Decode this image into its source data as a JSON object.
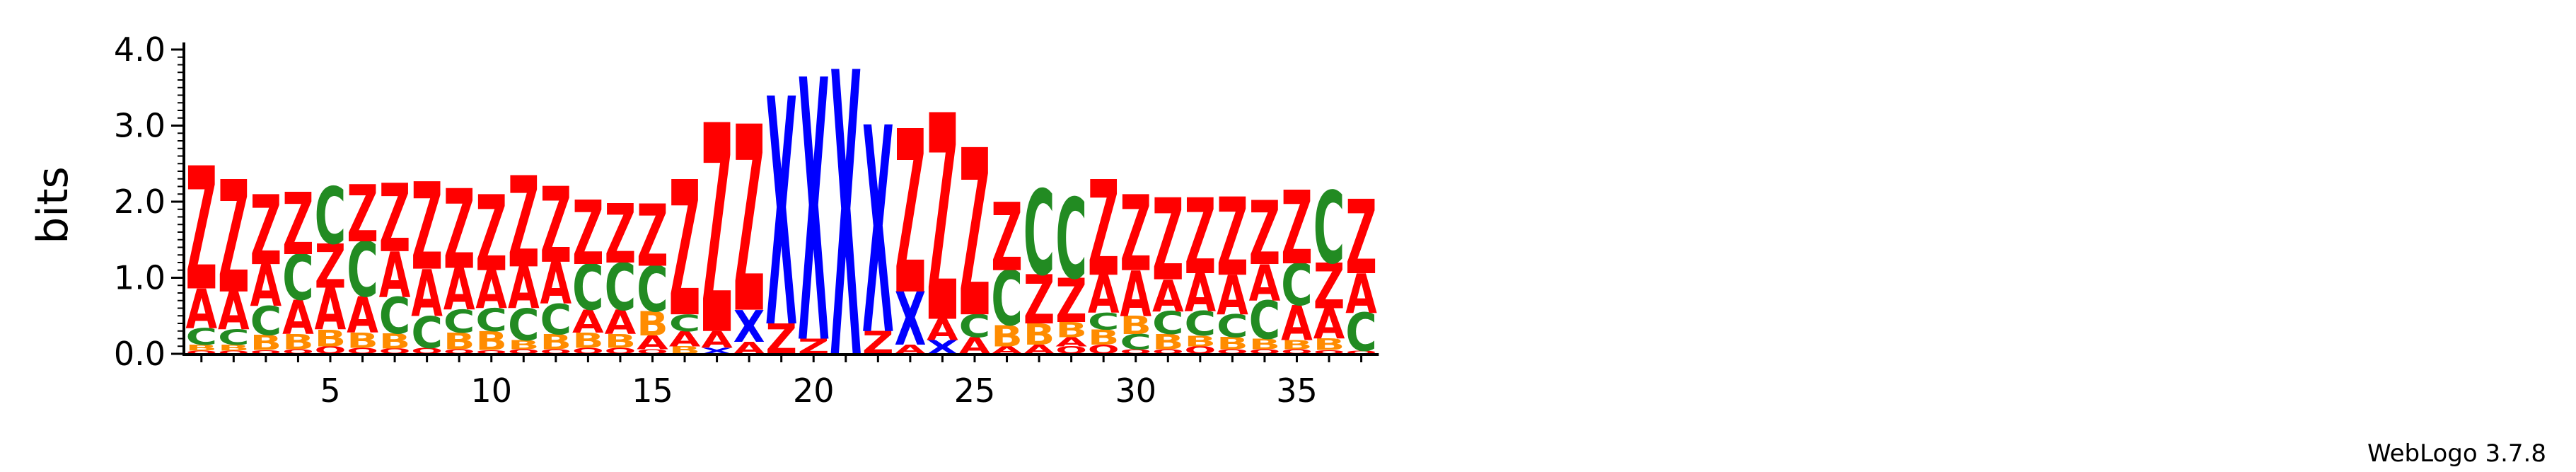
{
  "chart_data": {
    "type": "sequence-logo",
    "ylabel": "bits",
    "ylim": [
      0,
      4.0
    ],
    "yticks": [
      "0.0",
      "1.0",
      "2.0",
      "3.0",
      "4.0"
    ],
    "xticks": [
      {
        "position": 5,
        "label": "5"
      },
      {
        "position": 10,
        "label": "10"
      },
      {
        "position": 15,
        "label": "15"
      },
      {
        "position": 20,
        "label": "20"
      },
      {
        "position": 25,
        "label": "25"
      },
      {
        "position": 30,
        "label": "30"
      },
      {
        "position": 35,
        "label": "35"
      }
    ],
    "credit": "WebLogo 3.7.8",
    "colors": {
      "Z": "#ff0000",
      "A": "#ff0000",
      "C": "#228b22",
      "X": "#0000ff",
      "B": "#ff8c00",
      "Q": "#ff0000"
    },
    "positions": [
      {
        "x": 1,
        "letters": [
          {
            "l": "Q",
            "h": 0.04
          },
          {
            "l": "B",
            "h": 0.08
          },
          {
            "l": "C",
            "h": 0.22
          },
          {
            "l": "A",
            "h": 0.52
          },
          {
            "l": "Z",
            "h": 1.62
          }
        ]
      },
      {
        "x": 2,
        "letters": [
          {
            "l": "Q",
            "h": 0.04
          },
          {
            "l": "B",
            "h": 0.08
          },
          {
            "l": "C",
            "h": 0.2
          },
          {
            "l": "A",
            "h": 0.5
          },
          {
            "l": "Z",
            "h": 1.48
          }
        ]
      },
      {
        "x": 3,
        "letters": [
          {
            "l": "Q",
            "h": 0.05
          },
          {
            "l": "B",
            "h": 0.2
          },
          {
            "l": "C",
            "h": 0.38
          },
          {
            "l": "A",
            "h": 0.55
          },
          {
            "l": "Z",
            "h": 0.92
          }
        ]
      },
      {
        "x": 4,
        "letters": [
          {
            "l": "Q",
            "h": 0.06
          },
          {
            "l": "B",
            "h": 0.2
          },
          {
            "l": "A",
            "h": 0.45
          },
          {
            "l": "C",
            "h": 0.6
          },
          {
            "l": "Z",
            "h": 0.82
          }
        ]
      },
      {
        "x": 5,
        "letters": [
          {
            "l": "Q",
            "h": 0.1
          },
          {
            "l": "B",
            "h": 0.22
          },
          {
            "l": "A",
            "h": 0.55
          },
          {
            "l": "Z",
            "h": 0.58
          },
          {
            "l": "C",
            "h": 0.75
          }
        ]
      },
      {
        "x": 6,
        "letters": [
          {
            "l": "Q",
            "h": 0.08
          },
          {
            "l": "B",
            "h": 0.2
          },
          {
            "l": "A",
            "h": 0.48
          },
          {
            "l": "C",
            "h": 0.72
          },
          {
            "l": "Z",
            "h": 0.75
          }
        ]
      },
      {
        "x": 7,
        "letters": [
          {
            "l": "Q",
            "h": 0.07
          },
          {
            "l": "B",
            "h": 0.2
          },
          {
            "l": "C",
            "h": 0.48
          },
          {
            "l": "A",
            "h": 0.6
          },
          {
            "l": "Z",
            "h": 0.9
          }
        ]
      },
      {
        "x": 8,
        "letters": [
          {
            "l": "Q",
            "h": 0.08
          },
          {
            "l": "C",
            "h": 0.42
          },
          {
            "l": "A",
            "h": 0.62
          },
          {
            "l": "Z",
            "h": 1.15
          }
        ]
      },
      {
        "x": 9,
        "letters": [
          {
            "l": "Q",
            "h": 0.06
          },
          {
            "l": "B",
            "h": 0.22
          },
          {
            "l": "C",
            "h": 0.3
          },
          {
            "l": "A",
            "h": 0.55
          },
          {
            "l": "Z",
            "h": 1.05
          }
        ]
      },
      {
        "x": 10,
        "letters": [
          {
            "l": "Q",
            "h": 0.05
          },
          {
            "l": "B",
            "h": 0.25
          },
          {
            "l": "C",
            "h": 0.3
          },
          {
            "l": "A",
            "h": 0.5
          },
          {
            "l": "Z",
            "h": 1.0
          }
        ]
      },
      {
        "x": 11,
        "letters": [
          {
            "l": "Q",
            "h": 0.06
          },
          {
            "l": "B",
            "h": 0.12
          },
          {
            "l": "C",
            "h": 0.42
          },
          {
            "l": "A",
            "h": 0.55
          },
          {
            "l": "Z",
            "h": 1.2
          }
        ]
      },
      {
        "x": 12,
        "letters": [
          {
            "l": "Q",
            "h": 0.06
          },
          {
            "l": "B",
            "h": 0.2
          },
          {
            "l": "C",
            "h": 0.4
          },
          {
            "l": "A",
            "h": 0.55
          },
          {
            "l": "Z",
            "h": 1.0
          }
        ]
      },
      {
        "x": 13,
        "letters": [
          {
            "l": "Q",
            "h": 0.08
          },
          {
            "l": "B",
            "h": 0.2
          },
          {
            "l": "A",
            "h": 0.3
          },
          {
            "l": "C",
            "h": 0.6
          },
          {
            "l": "Z",
            "h": 0.85
          }
        ]
      },
      {
        "x": 14,
        "letters": [
          {
            "l": "Q",
            "h": 0.08
          },
          {
            "l": "B",
            "h": 0.18
          },
          {
            "l": "A",
            "h": 0.32
          },
          {
            "l": "C",
            "h": 0.62
          },
          {
            "l": "Z",
            "h": 0.78
          }
        ]
      },
      {
        "x": 15,
        "letters": [
          {
            "l": "Q",
            "h": 0.06
          },
          {
            "l": "A",
            "h": 0.18
          },
          {
            "l": "B",
            "h": 0.32
          },
          {
            "l": "C",
            "h": 0.6
          },
          {
            "l": "Z",
            "h": 0.82
          }
        ]
      },
      {
        "x": 16,
        "letters": [
          {
            "l": "B",
            "h": 0.1
          },
          {
            "l": "A",
            "h": 0.2
          },
          {
            "l": "C",
            "h": 0.22
          },
          {
            "l": "Z",
            "h": 1.78
          }
        ]
      },
      {
        "x": 17,
        "letters": [
          {
            "l": "X",
            "h": 0.08
          },
          {
            "l": "A",
            "h": 0.22
          },
          {
            "l": "Z",
            "h": 2.75
          }
        ]
      },
      {
        "x": 18,
        "letters": [
          {
            "l": "A",
            "h": 0.16
          },
          {
            "l": "X",
            "h": 0.42
          },
          {
            "l": "Z",
            "h": 2.45
          }
        ]
      },
      {
        "x": 19,
        "letters": [
          {
            "l": "Z",
            "h": 0.4
          },
          {
            "l": "X",
            "h": 3.0
          }
        ]
      },
      {
        "x": 20,
        "letters": [
          {
            "l": "Z",
            "h": 0.2
          },
          {
            "l": "X",
            "h": 3.45
          }
        ]
      },
      {
        "x": 21,
        "letters": [
          {
            "l": "X",
            "h": 3.75
          }
        ]
      },
      {
        "x": 22,
        "letters": [
          {
            "l": "Z",
            "h": 0.3
          },
          {
            "l": "X",
            "h": 2.72
          }
        ]
      },
      {
        "x": 23,
        "letters": [
          {
            "l": "A",
            "h": 0.12
          },
          {
            "l": "X",
            "h": 0.7
          },
          {
            "l": "Z",
            "h": 2.15
          }
        ]
      },
      {
        "x": 24,
        "letters": [
          {
            "l": "X",
            "h": 0.18
          },
          {
            "l": "A",
            "h": 0.28
          },
          {
            "l": "Z",
            "h": 2.72
          }
        ]
      },
      {
        "x": 25,
        "letters": [
          {
            "l": "A",
            "h": 0.22
          },
          {
            "l": "C",
            "h": 0.3
          },
          {
            "l": "Z",
            "h": 2.2
          }
        ]
      },
      {
        "x": 26,
        "letters": [
          {
            "l": "A",
            "h": 0.1
          },
          {
            "l": "B",
            "h": 0.28
          },
          {
            "l": "C",
            "h": 0.72
          },
          {
            "l": "Z",
            "h": 0.9
          }
        ]
      },
      {
        "x": 27,
        "letters": [
          {
            "l": "A",
            "h": 0.12
          },
          {
            "l": "B",
            "h": 0.28
          },
          {
            "l": "Z",
            "h": 0.65
          },
          {
            "l": "C",
            "h": 1.12
          }
        ]
      },
      {
        "x": 28,
        "letters": [
          {
            "l": "Q",
            "h": 0.1
          },
          {
            "l": "A",
            "h": 0.12
          },
          {
            "l": "B",
            "h": 0.2
          },
          {
            "l": "Z",
            "h": 0.58
          },
          {
            "l": "C",
            "h": 1.06
          }
        ]
      },
      {
        "x": 29,
        "letters": [
          {
            "l": "Q",
            "h": 0.12
          },
          {
            "l": "B",
            "h": 0.2
          },
          {
            "l": "C",
            "h": 0.22
          },
          {
            "l": "A",
            "h": 0.5
          },
          {
            "l": "Z",
            "h": 1.26
          }
        ]
      },
      {
        "x": 30,
        "letters": [
          {
            "l": "Q",
            "h": 0.06
          },
          {
            "l": "C",
            "h": 0.2
          },
          {
            "l": "B",
            "h": 0.24
          },
          {
            "l": "A",
            "h": 0.6
          },
          {
            "l": "Z",
            "h": 1.0
          }
        ]
      },
      {
        "x": 31,
        "letters": [
          {
            "l": "Q",
            "h": 0.06
          },
          {
            "l": "B",
            "h": 0.2
          },
          {
            "l": "C",
            "h": 0.3
          },
          {
            "l": "A",
            "h": 0.42
          },
          {
            "l": "Z",
            "h": 1.08
          }
        ]
      },
      {
        "x": 32,
        "letters": [
          {
            "l": "Q",
            "h": 0.1
          },
          {
            "l": "B",
            "h": 0.14
          },
          {
            "l": "C",
            "h": 0.32
          },
          {
            "l": "A",
            "h": 0.5
          },
          {
            "l": "Z",
            "h": 1.0
          }
        ]
      },
      {
        "x": 33,
        "letters": [
          {
            "l": "Q",
            "h": 0.06
          },
          {
            "l": "B",
            "h": 0.16
          },
          {
            "l": "C",
            "h": 0.3
          },
          {
            "l": "A",
            "h": 0.52
          },
          {
            "l": "Z",
            "h": 1.03
          }
        ]
      },
      {
        "x": 34,
        "letters": [
          {
            "l": "Q",
            "h": 0.06
          },
          {
            "l": "B",
            "h": 0.14
          },
          {
            "l": "C",
            "h": 0.5
          },
          {
            "l": "A",
            "h": 0.48
          },
          {
            "l": "Z",
            "h": 0.84
          }
        ]
      },
      {
        "x": 35,
        "letters": [
          {
            "l": "Q",
            "h": 0.06
          },
          {
            "l": "B",
            "h": 0.12
          },
          {
            "l": "A",
            "h": 0.46
          },
          {
            "l": "C",
            "h": 0.55
          },
          {
            "l": "Z",
            "h": 0.97
          }
        ]
      },
      {
        "x": 36,
        "letters": [
          {
            "l": "Q",
            "h": 0.05
          },
          {
            "l": "B",
            "h": 0.15
          },
          {
            "l": "A",
            "h": 0.4
          },
          {
            "l": "Z",
            "h": 0.6
          },
          {
            "l": "C",
            "h": 0.95
          }
        ]
      },
      {
        "x": 37,
        "letters": [
          {
            "l": "Q",
            "h": 0.04
          },
          {
            "l": "C",
            "h": 0.5
          },
          {
            "l": "A",
            "h": 0.52
          },
          {
            "l": "Z",
            "h": 0.98
          }
        ]
      }
    ]
  }
}
